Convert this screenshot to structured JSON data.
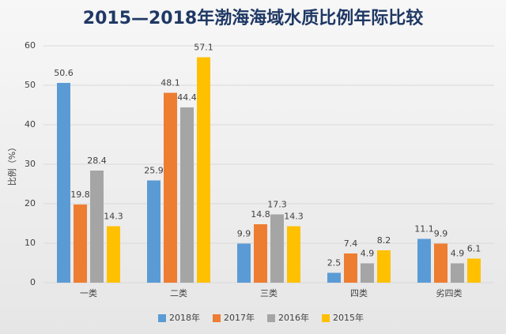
{
  "chart_data": {
    "type": "bar",
    "title": "2015—2018年渤海海域水质比例年际比较",
    "y_label": "比例（%）",
    "categories": [
      "一类",
      "二类",
      "三类",
      "四类",
      "劣四类"
    ],
    "series": [
      {
        "name": "2018年",
        "color": "#5b9bd5",
        "values": [
          50.6,
          25.9,
          9.9,
          2.5,
          11.1
        ]
      },
      {
        "name": "2017年",
        "color": "#ed7d31",
        "values": [
          19.8,
          48.1,
          14.8,
          7.4,
          9.9
        ]
      },
      {
        "name": "2016年",
        "color": "#a5a5a5",
        "values": [
          28.4,
          44.4,
          17.3,
          4.9,
          4.9
        ]
      },
      {
        "name": "2015年",
        "color": "#ffc000",
        "values": [
          14.3,
          57.1,
          14.3,
          8.2,
          6.1
        ]
      }
    ],
    "ylim": [
      0,
      60
    ],
    "yticks": [
      0,
      10,
      20,
      30,
      40,
      50,
      60
    ],
    "grid": true,
    "legend": "bottom"
  }
}
